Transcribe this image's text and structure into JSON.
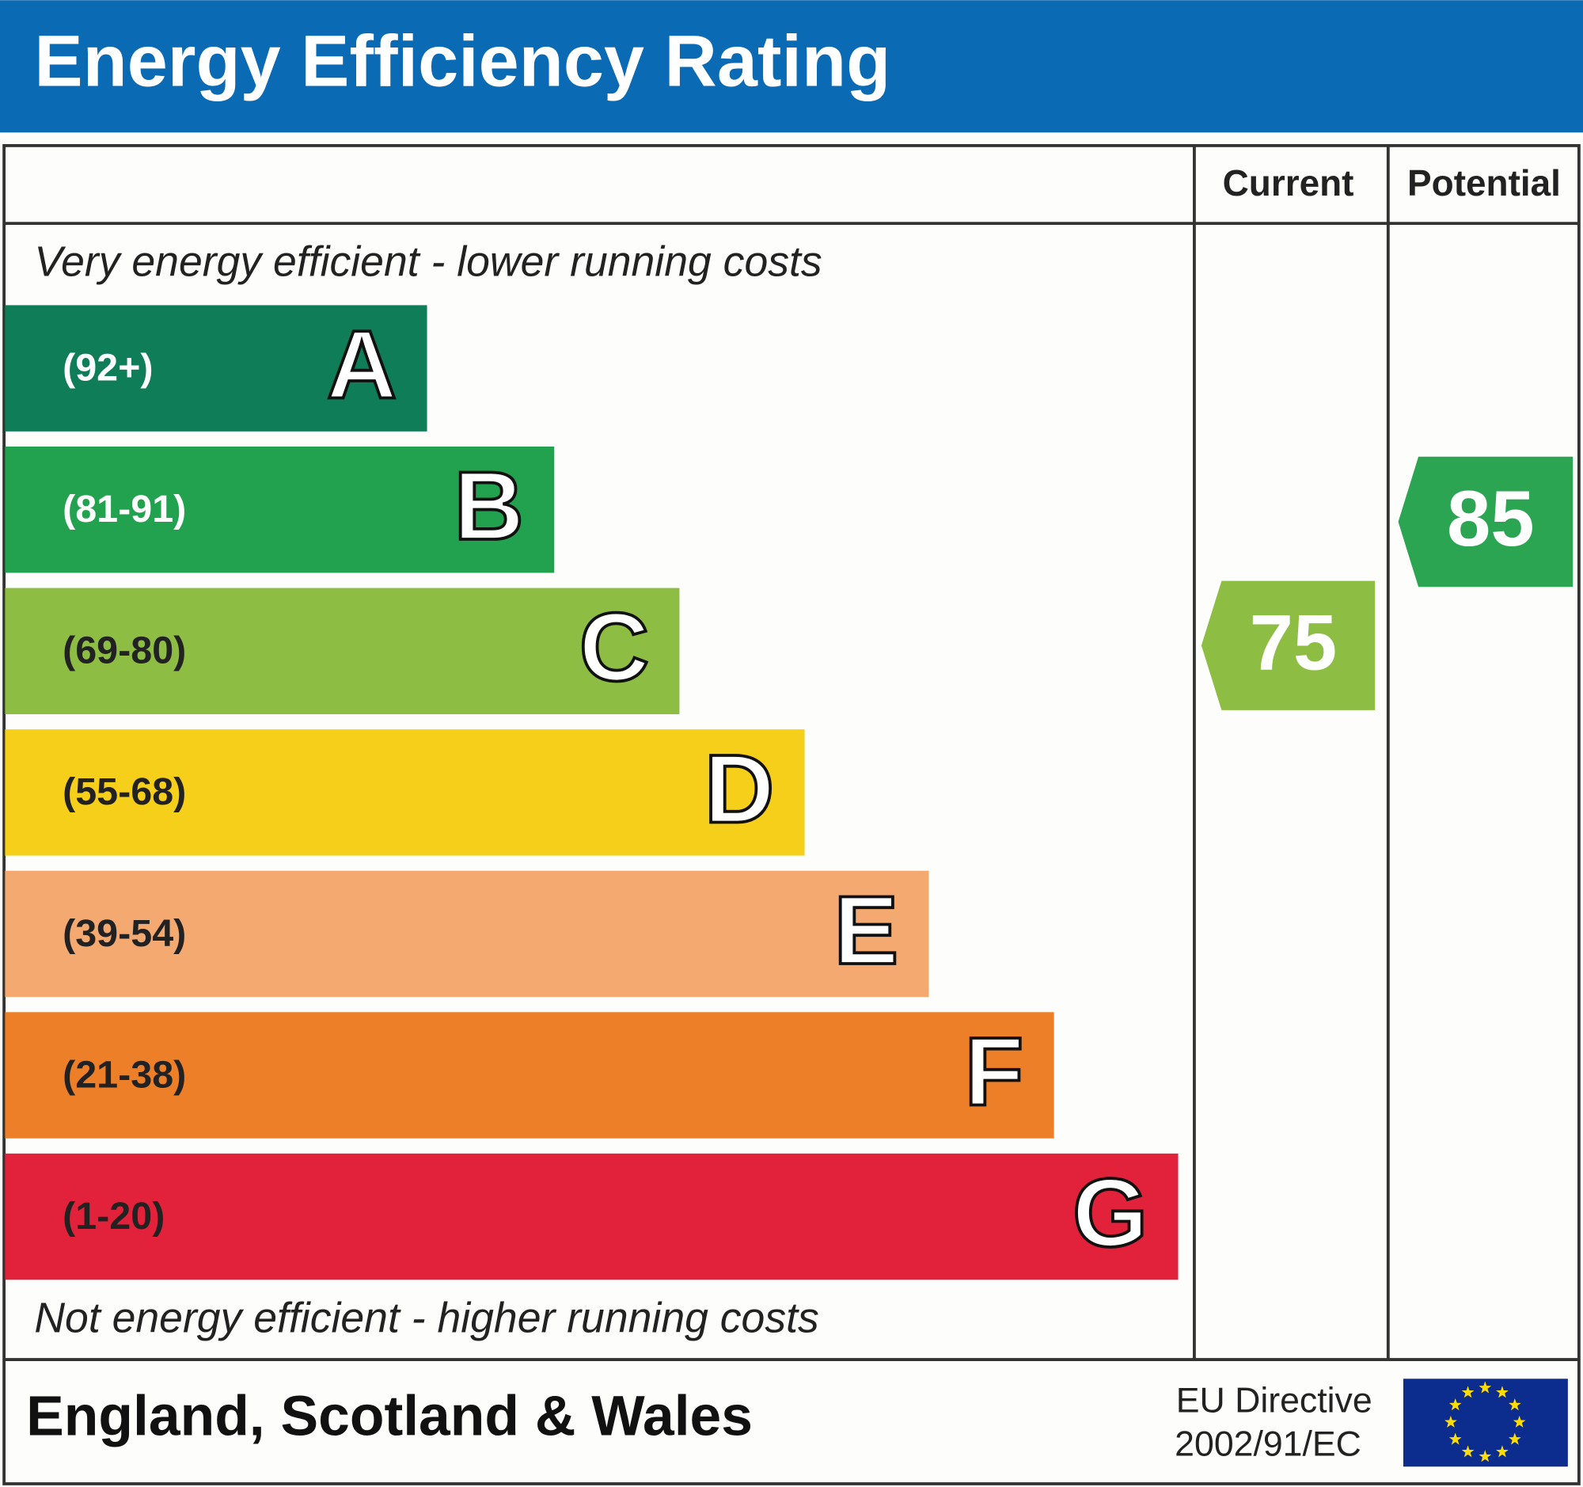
{
  "header": {
    "title": "Energy Efficiency Rating"
  },
  "columns": [
    "Current",
    "Potential"
  ],
  "top_note": "Very energy efficient - lower running costs",
  "bands": [
    {
      "range": "(92+)",
      "letter": "A",
      "color": "#0f7d58"
    },
    {
      "range": "(81-91)",
      "letter": "B",
      "color": "#22a14f"
    },
    {
      "range": "(69-80)",
      "letter": "C",
      "color": "#8dbe43"
    },
    {
      "range": "(55-68)",
      "letter": "D",
      "color": "#f6cf1a"
    },
    {
      "range": "(39-54)",
      "letter": "E",
      "color": "#f3a96f"
    },
    {
      "range": "(21-38)",
      "letter": "F",
      "color": "#ec7f28"
    },
    {
      "range": "(1-20)",
      "letter": "G",
      "color": "#e2223a"
    }
  ],
  "bottom_note": "Not energy efficient - higher running costs",
  "current": {
    "value": 75,
    "color": "#8dbe43"
  },
  "potential": {
    "value": 85,
    "color": "#2ba552"
  },
  "footer": {
    "region": "England, Scotland & Wales",
    "directive": [
      "EU Directive",
      "2002/91/EC"
    ]
  }
}
